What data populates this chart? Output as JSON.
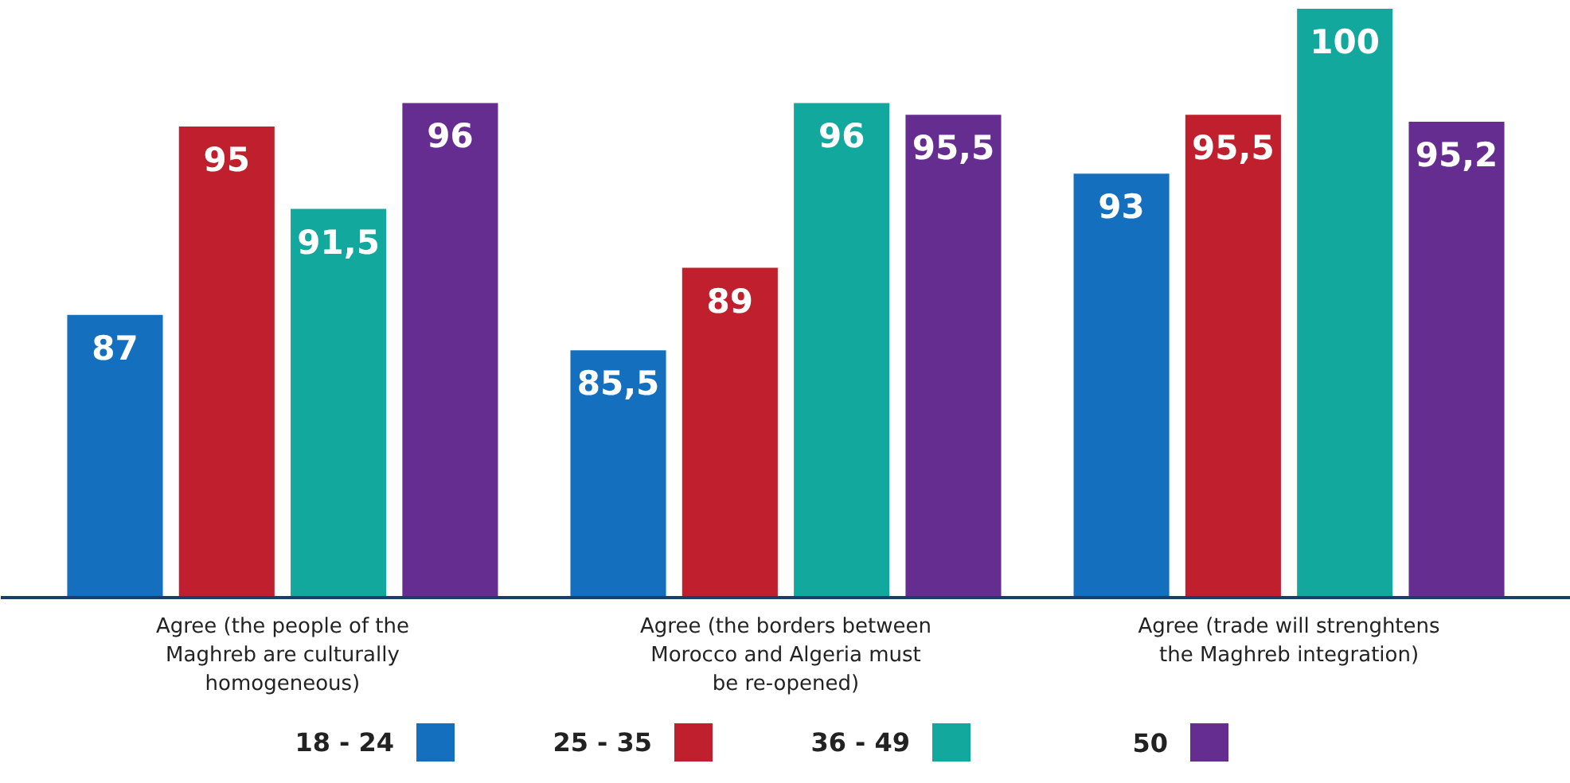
{
  "chart_data": {
    "type": "bar",
    "categories": [
      "Agree (the people of the\nMaghreb are culturally\nhomogeneous)",
      "Agree (the borders between\nMorocco and Algeria must\nbe re-opened)",
      "Agree (trade will strenghtens\nthe Maghreb integration)"
    ],
    "series": [
      {
        "name": "18 - 24",
        "color": "#1470bf",
        "values": [
          87,
          85.5,
          93
        ],
        "value_labels": [
          "87",
          "85,5",
          "93"
        ]
      },
      {
        "name": "25 - 35",
        "color": "#c01f2e",
        "values": [
          95,
          89,
          95.5
        ],
        "value_labels": [
          "95",
          "89",
          "95,5"
        ]
      },
      {
        "name": "36 - 49",
        "color": "#13a89e",
        "values": [
          91.5,
          96,
          100
        ],
        "value_labels": [
          "91,5",
          "96",
          "100"
        ]
      },
      {
        "name": "50",
        "color": "#662d91",
        "values": [
          96,
          95.5,
          95.2
        ],
        "value_labels": [
          "96",
          "95,5",
          "95,2"
        ]
      }
    ],
    "ylim": [
      75,
      100
    ],
    "tick_labels": "x",
    "grid": false,
    "legend": "bottom"
  }
}
